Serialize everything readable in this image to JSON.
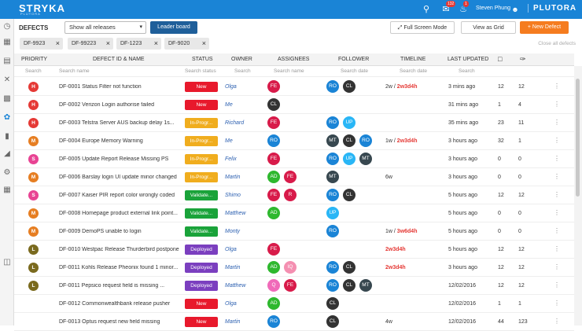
{
  "topbar": {
    "logo": "STRYKA",
    "logo_sub": "PLUTORA",
    "search_icon": "search-icon",
    "inbox_badge": "132",
    "bell_badge": "1",
    "user_name": "Steven Phung",
    "brand": "PLUTORA"
  },
  "toolbar": {
    "title": "DEFECTS",
    "release_select": "Show all releases",
    "leader_board": "Leader board",
    "full_screen": "Full Screen Mode",
    "view_as_grid": "View as Grid",
    "new_defect": "+ New Defect"
  },
  "filters": {
    "chips": [
      "DF-9923",
      "DF-99223",
      "DF-1223",
      "DF-9020"
    ],
    "clear_all": "Close all defects"
  },
  "columns": {
    "priority": "PRIORITY",
    "defect": "DEFECT ID & NAME",
    "status": "STATUS",
    "owner": "OWNER",
    "assignees": "ASSIGNEES",
    "follower": "FOLLOWER",
    "timeline": "TIMELINE",
    "last_updated": "LAST UPDATED"
  },
  "search": {
    "priority": "Search",
    "defect": "Search name",
    "status": "Search status",
    "owner": "Search",
    "assignees": "Search name",
    "follower": "Search date",
    "timeline": "Search date",
    "last_updated": "Search"
  },
  "colors": {
    "H": "#e53935",
    "M": "#e67e22",
    "S": "#e84393",
    "L": "#7a6a1e",
    "New": "#e8192c",
    "In-Progr...": "#f0ad1e",
    "Validate...": "#1aa33a",
    "Deployed": "#7b3fbf",
    "FE": "#d81b4a",
    "CL": "#333333",
    "RO": "#1a84d6",
    "UP": "#29b6f6",
    "MT": "#37474f",
    "AD": "#2eb82e",
    "R": "#d81b4a",
    "IQ": "#f48fb1",
    "Q": "#f06ab9"
  },
  "rows": [
    {
      "pri": "H",
      "name": "DF-0001 Status Filter not function",
      "status": "New",
      "owner": "Olga",
      "assignees": [
        "FE"
      ],
      "followers": [
        "RO",
        "CL"
      ],
      "tl_a": "2w / ",
      "tl_b": "2w3d4h",
      "updated": "3 mins ago",
      "c1": "12",
      "c2": "12"
    },
    {
      "pri": "H",
      "name": "DF-0002 Verizon Login authorise failed",
      "status": "New",
      "owner": "Me",
      "assignees": [
        "CL"
      ],
      "followers": [],
      "tl_a": "",
      "tl_b": "",
      "updated": "31 mins ago",
      "c1": "1",
      "c2": "4"
    },
    {
      "pri": "H",
      "name": "DF-0003 Telstra Server AUS backup delay 1s...",
      "status": "In-Progr...",
      "owner": "Richard",
      "assignees": [
        "FE"
      ],
      "followers": [
        "RO",
        "UP"
      ],
      "tl_a": "",
      "tl_b": "",
      "updated": "35 mins ago",
      "c1": "23",
      "c2": "11"
    },
    {
      "pri": "M",
      "name": "DF-0004 Europe Memory Warning",
      "status": "In-Progr...",
      "owner": "Me",
      "assignees": [
        "RO"
      ],
      "followers": [
        "MT",
        "CL",
        "RO"
      ],
      "tl_a": "1w / ",
      "tl_b": "2w3d4h",
      "updated": "3 hours ago",
      "c1": "32",
      "c2": "1"
    },
    {
      "pri": "S",
      "name": "DF-0005 Update Report Release Missing PS",
      "status": "In-Progr...",
      "owner": "Felix",
      "assignees": [
        "FE"
      ],
      "followers": [
        "RO",
        "UP",
        "MT"
      ],
      "tl_a": "",
      "tl_b": "",
      "updated": "3 hours ago",
      "c1": "0",
      "c2": "0"
    },
    {
      "pri": "M",
      "name": "DF-0006 Barslay login UI update minor changed",
      "status": "In-Progr...",
      "owner": "Martin",
      "assignees": [
        "AD",
        "FE"
      ],
      "followers": [
        "MT"
      ],
      "tl_a": "6w",
      "tl_b": "",
      "updated": "3 hours ago",
      "c1": "0",
      "c2": "0"
    },
    {
      "pri": "S",
      "name": "DF-0007 Kaiser PIR report color wrongly coded",
      "status": "Validate...",
      "owner": "Shimo",
      "assignees": [
        "FE",
        "R"
      ],
      "followers": [
        "RO",
        "CL"
      ],
      "tl_a": "",
      "tl_b": "",
      "updated": "5 hours ago",
      "c1": "12",
      "c2": "12"
    },
    {
      "pri": "M",
      "name": "DF-0008 Homepage product external link point...",
      "status": "Validate...",
      "owner": "Matthew",
      "assignees": [
        "AD"
      ],
      "followers": [
        "UP"
      ],
      "tl_a": "",
      "tl_b": "",
      "updated": "5 hours ago",
      "c1": "0",
      "c2": "0"
    },
    {
      "pri": "M",
      "name": "DF-0009 DemoPS unable to login",
      "status": "Validate...",
      "owner": "Monty",
      "assignees": [],
      "followers": [
        "RO"
      ],
      "tl_a": "1w / ",
      "tl_b": "3w6d4h",
      "updated": "5 hours ago",
      "c1": "0",
      "c2": "0"
    },
    {
      "pri": "L",
      "name": "DF-0010 Westpac Release Thurderbird postpone",
      "status": "Deployed",
      "owner": "Olga",
      "assignees": [
        "FE"
      ],
      "followers": [],
      "tl_a": "",
      "tl_b": "2w3d4h",
      "updated": "5 hours ago",
      "c1": "12",
      "c2": "12"
    },
    {
      "pri": "L",
      "name": "DF-0011 Kohls Release Pheonix found 1 minor...",
      "status": "Deployed",
      "owner": "Martin",
      "assignees": [
        "AD",
        "IQ"
      ],
      "followers": [
        "RO",
        "CL"
      ],
      "tl_a": "",
      "tl_b": "2w3d4h",
      "updated": "3 hours ago",
      "c1": "12",
      "c2": "12"
    },
    {
      "pri": "L",
      "name": "DF-0011 Pepsico request field is missing ...",
      "status": "Deployed",
      "owner": "Matthew",
      "assignees": [
        "Q",
        "FE"
      ],
      "followers": [
        "RO",
        "CL",
        "MT"
      ],
      "tl_a": "",
      "tl_b": "",
      "updated": "12/02/2016",
      "c1": "12",
      "c2": "12"
    },
    {
      "pri": "",
      "name": "DF-0012 Commonwealthbank release pusher",
      "status": "New",
      "owner": "Olga",
      "assignees": [
        "AD"
      ],
      "followers": [
        "CL"
      ],
      "tl_a": "",
      "tl_b": "",
      "updated": "12/02/2016",
      "c1": "1",
      "c2": "1"
    },
    {
      "pri": "",
      "name": "DF-0013 Optus request new field missing",
      "status": "New",
      "owner": "Martin",
      "assignees": [
        "RO"
      ],
      "followers": [
        "CL"
      ],
      "tl_a": "4w",
      "tl_b": "",
      "updated": "12/02/2016",
      "c1": "44",
      "c2": "123"
    }
  ]
}
